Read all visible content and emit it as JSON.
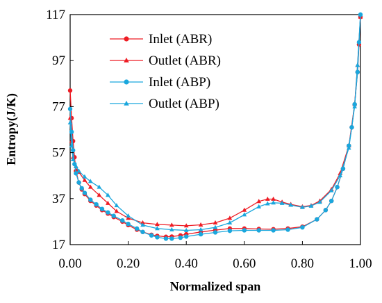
{
  "chart_data": {
    "type": "line",
    "xlabel": "Normalized span",
    "ylabel": "Entropy(J/K)",
    "xlim": [
      0,
      1
    ],
    "ylim": [
      17,
      117
    ],
    "xticks": [
      0.0,
      0.2,
      0.4,
      0.6,
      0.8,
      1.0
    ],
    "xtick_labels": [
      "0.00",
      "0.20",
      "0.40",
      "0.60",
      "0.80",
      "1.00"
    ],
    "yticks": [
      17,
      37,
      57,
      77,
      97,
      117
    ],
    "ytick_labels": [
      "17",
      "37",
      "57",
      "77",
      "97",
      "117"
    ],
    "grid": false,
    "legend_position": "top-left",
    "series": [
      {
        "name": "Inlet (ABR)",
        "color": "#ee1c24",
        "marker": "circle",
        "x": [
          0.0,
          0.005,
          0.01,
          0.015,
          0.02,
          0.03,
          0.04,
          0.05,
          0.07,
          0.09,
          0.11,
          0.13,
          0.15,
          0.18,
          0.2,
          0.23,
          0.25,
          0.28,
          0.3,
          0.33,
          0.35,
          0.38,
          0.4,
          0.45,
          0.5,
          0.55,
          0.6,
          0.65,
          0.7,
          0.75,
          0.8,
          0.85,
          0.88,
          0.9,
          0.92,
          0.94,
          0.96,
          0.97,
          0.98,
          0.99,
          0.995,
          1.0
        ],
        "y": [
          84,
          72,
          62,
          55,
          49,
          44,
          41,
          39,
          36,
          34,
          32,
          30.5,
          29,
          27,
          25.5,
          23.5,
          22.5,
          21.3,
          20.8,
          20.4,
          20.5,
          21,
          21.5,
          22.5,
          23.3,
          24,
          24,
          23.8,
          23.7,
          24,
          24.8,
          28,
          32,
          36,
          42,
          50,
          60,
          68,
          78,
          92,
          104,
          116
        ]
      },
      {
        "name": "Outlet (ABR)",
        "color": "#ee1c24",
        "marker": "triangle",
        "x": [
          0.0,
          0.005,
          0.01,
          0.02,
          0.03,
          0.05,
          0.07,
          0.1,
          0.13,
          0.16,
          0.2,
          0.25,
          0.3,
          0.35,
          0.4,
          0.45,
          0.5,
          0.55,
          0.6,
          0.65,
          0.68,
          0.7,
          0.73,
          0.76,
          0.8,
          0.83,
          0.86,
          0.9,
          0.93,
          0.96,
          0.98,
          0.99,
          1.0
        ],
        "y": [
          72,
          62,
          55,
          51,
          48.5,
          45,
          42,
          38.5,
          35,
          31.5,
          28.5,
          26.5,
          25.8,
          25.5,
          25.2,
          25.6,
          26.5,
          28.5,
          32,
          35.8,
          36.8,
          36.8,
          35.5,
          34.5,
          33.5,
          34,
          36,
          41,
          48,
          60,
          78,
          95,
          116
        ]
      },
      {
        "name": "Inlet (ABP)",
        "color": "#1aa7dd",
        "marker": "circle",
        "x": [
          0.0,
          0.005,
          0.01,
          0.015,
          0.02,
          0.03,
          0.04,
          0.05,
          0.07,
          0.09,
          0.11,
          0.13,
          0.15,
          0.18,
          0.2,
          0.23,
          0.25,
          0.28,
          0.3,
          0.33,
          0.35,
          0.38,
          0.4,
          0.45,
          0.5,
          0.55,
          0.6,
          0.65,
          0.7,
          0.75,
          0.8,
          0.85,
          0.88,
          0.9,
          0.92,
          0.94,
          0.96,
          0.97,
          0.98,
          0.99,
          0.995,
          1.0
        ],
        "y": [
          76,
          66,
          58,
          52,
          48,
          44,
          41.5,
          39.5,
          36.5,
          34.5,
          32.5,
          31,
          29.5,
          27.5,
          26,
          24,
          22.5,
          21,
          20.2,
          19.6,
          19.6,
          20,
          20.5,
          21.5,
          22.3,
          23,
          23.2,
          23.2,
          23.2,
          23.5,
          24.5,
          28,
          32,
          36,
          42,
          50,
          60,
          68,
          78,
          92,
          105,
          117
        ]
      },
      {
        "name": "Outlet (ABP)",
        "color": "#1aa7dd",
        "marker": "triangle",
        "x": [
          0.0,
          0.005,
          0.01,
          0.02,
          0.03,
          0.05,
          0.07,
          0.1,
          0.13,
          0.16,
          0.2,
          0.25,
          0.3,
          0.35,
          0.4,
          0.45,
          0.5,
          0.55,
          0.6,
          0.65,
          0.68,
          0.7,
          0.73,
          0.76,
          0.8,
          0.83,
          0.86,
          0.9,
          0.93,
          0.96,
          0.98,
          0.99,
          1.0
        ],
        "y": [
          70,
          60,
          54,
          51,
          49,
          46.5,
          44.5,
          42,
          38.5,
          34,
          29.5,
          25.5,
          24,
          23.5,
          23.2,
          23.5,
          24.5,
          26.5,
          30,
          33.5,
          34.8,
          35.2,
          35,
          34.2,
          33.2,
          33.8,
          35.5,
          40.5,
          47,
          59,
          77,
          95,
          117
        ]
      }
    ]
  }
}
